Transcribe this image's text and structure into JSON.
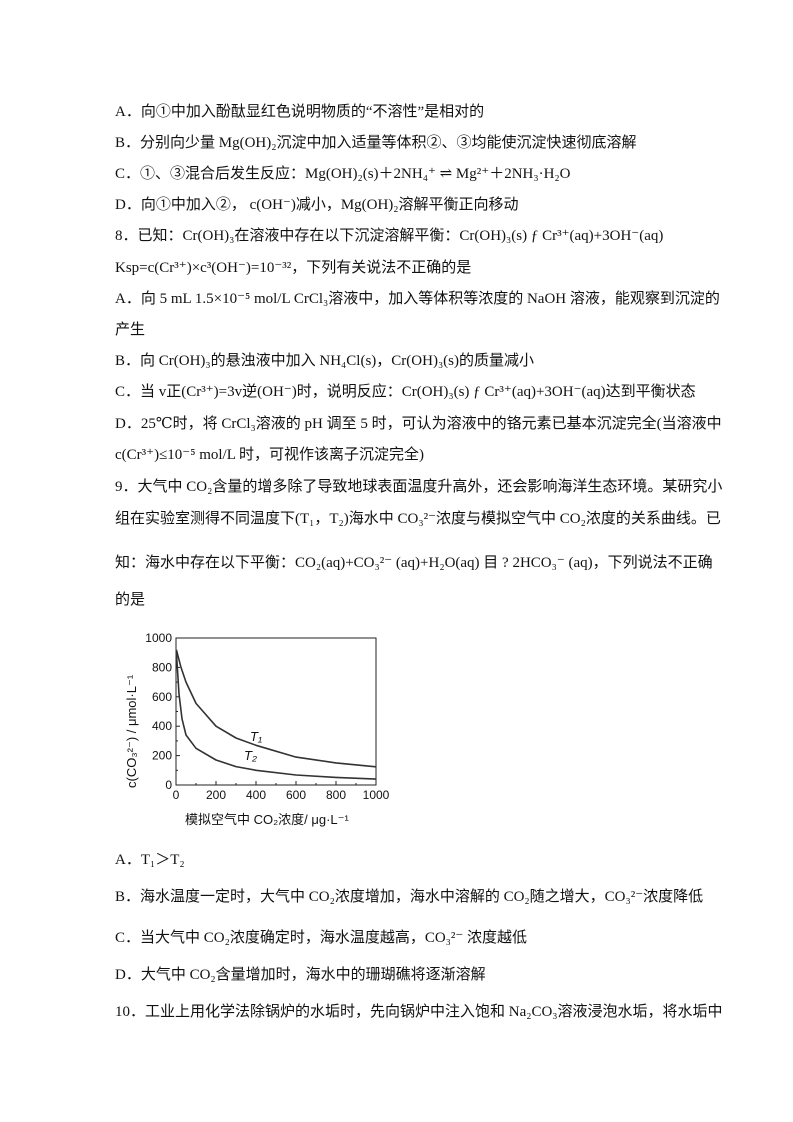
{
  "q7_options": [
    "A．向①中加入酚酞显红色说明物质的“不溶性”是相对的",
    "B．分别向少量 Mg(OH)₂沉淀中加入适量等体积②、③均能使沉淀快速彻底溶解",
    "C．①、③混合后发生反应：Mg(OH)₂(s)＋2NH₄⁺ ⇌ Mg²⁺＋2NH₃·H₂O",
    "D．向①中加入②， c(OH⁻)减小，Mg(OH)₂溶解平衡正向移动"
  ],
  "q8": {
    "stem": [
      "8．已知：Cr(OH)₃在溶液中存在以下沉淀溶解平衡：Cr(OH)₃(s) ƒ   Cr³⁺(aq)+3OH⁻(aq)",
      "Ksp=c(Cr³⁺)×c³(OH⁻)=10⁻³²，下列有关说法不正确的是"
    ],
    "options": [
      "A．向 5 mL 1.5×10⁻⁵ mol/L CrCl₃溶液中，加入等体积等浓度的 NaOH 溶液，能观察到沉淀的",
      "产生",
      "B．向 Cr(OH)₃的悬浊液中加入 NH₄Cl(s)，Cr(OH)₃(s)的质量减小",
      "C．当 v正(Cr³⁺)=3v逆(OH⁻)时，说明反应：Cr(OH)₃(s) ƒ   Cr³⁺(aq)+3OH⁻(aq)达到平衡状态",
      "D．25℃时，将 CrCl₃溶液的 pH 调至 5 时，可认为溶液中的铬元素已基本沉淀完全(当溶液中",
      "c(Cr³⁺)≤10⁻⁵ mol/L 时，可视作该离子沉淀完全)"
    ]
  },
  "q9": {
    "stem": [
      "9．大气中 CO₂含量的增多除了导致地球表面温度升高外，还会影响海洋生态环境。某研究小",
      "组在实验室测得不同温度下(T₁，T₂)海水中 CO₃²⁻浓度与模拟空气中 CO₂浓度的关系曲线。已",
      "知：海水中存在以下平衡：CO₂(aq)+CO₃²⁻ (aq)+H₂O(aq) 目 ? 2HCO₃⁻ (aq)，下列说法不正确",
      "的是"
    ],
    "options": [
      "A．T₁＞T₂",
      "B．海水温度一定时，大气中 CO₂浓度增加，海水中溶解的 CO₂随之增大，CO₃²⁻浓度降低",
      "C．当大气中 CO₂浓度确定时，海水温度越高，CO₃²⁻ 浓度越低",
      "D．大气中 CO₂含量增加时，海水中的珊瑚礁将逐渐溶解"
    ]
  },
  "q10": {
    "stem": "10．工业上用化学法除锅炉的水垢时，先向锅炉中注入饱和 Na₂CO₃溶液浸泡水垢，将水垢中"
  },
  "chart_data": {
    "type": "line",
    "xlabel": "模拟空气中 CO₂浓度/ μg·L⁻¹",
    "ylabel": "c(CO₃²⁻) / μmol·L⁻¹",
    "xlim": [
      0,
      1000
    ],
    "ylim": [
      0,
      1000
    ],
    "xticks": [
      "0",
      "200",
      "400",
      "600",
      "800",
      "1000"
    ],
    "yticks": [
      "0",
      "200",
      "400",
      "600",
      "800",
      "1000"
    ],
    "grid": false,
    "line_color": "#333333",
    "series": [
      {
        "name": "T₁",
        "x": [
          2,
          25,
          50,
          100,
          200,
          300,
          400,
          600,
          800,
          1000
        ],
        "y": [
          920,
          800,
          700,
          555,
          400,
          320,
          270,
          190,
          150,
          124
        ]
      },
      {
        "name": "T₂",
        "x": [
          2,
          15,
          30,
          50,
          100,
          200,
          300,
          400,
          600,
          800,
          1000
        ],
        "y": [
          900,
          620,
          450,
          340,
          250,
          170,
          125,
          100,
          68,
          52,
          40
        ]
      }
    ]
  }
}
